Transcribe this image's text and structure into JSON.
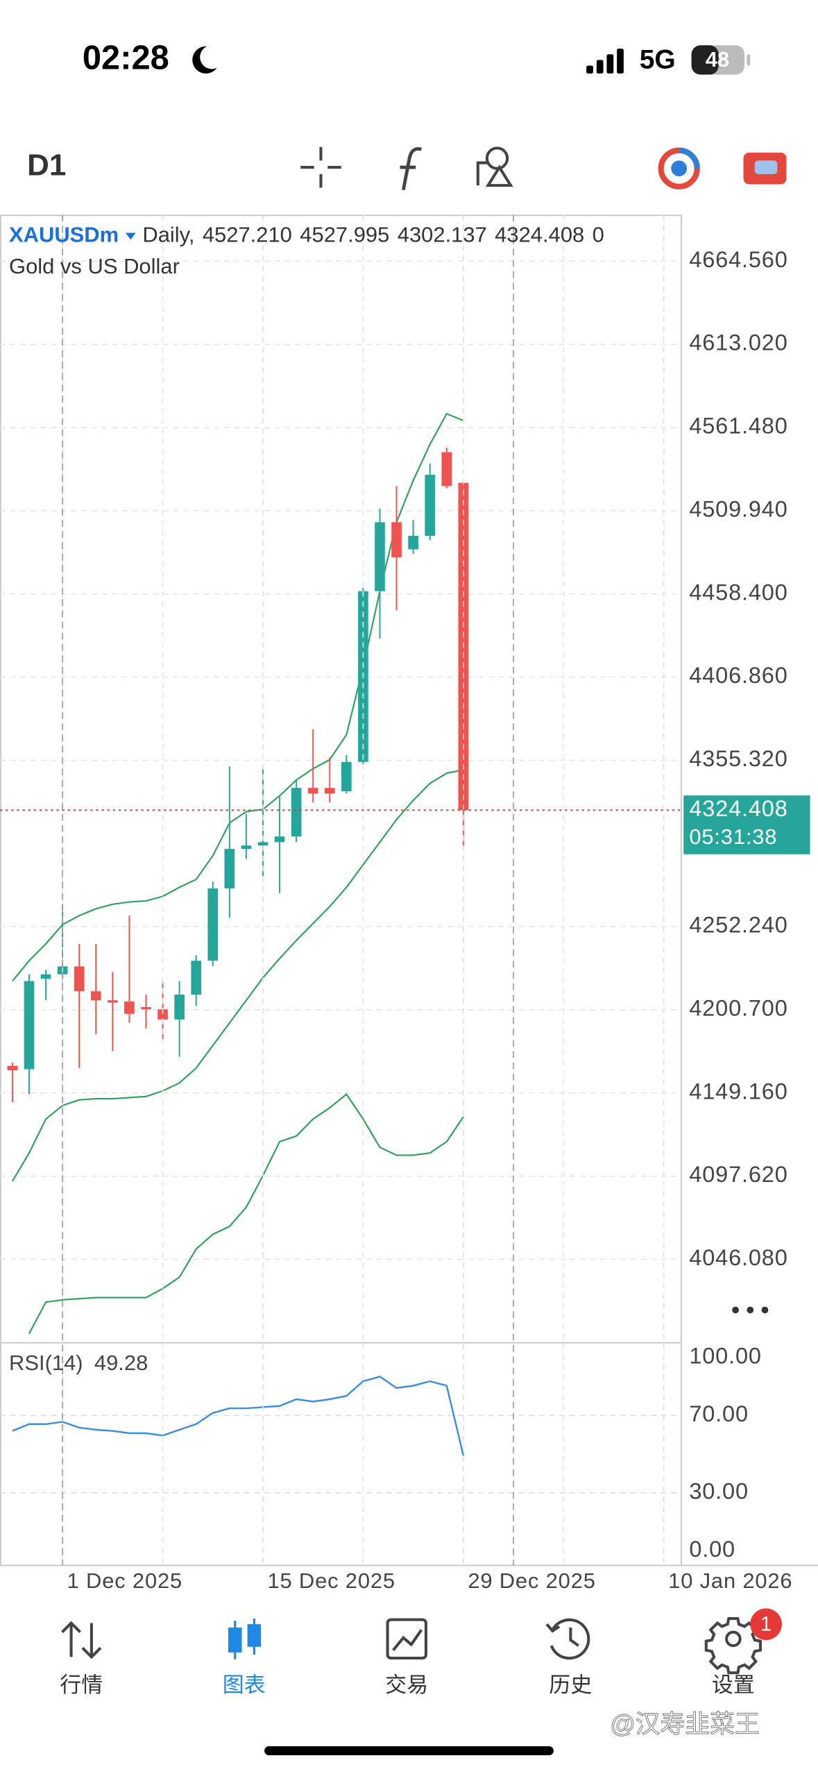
{
  "status_bar": {
    "time": "02:28",
    "network": "5G",
    "battery": "48"
  },
  "toolbar": {
    "timeframe": "D1"
  },
  "chart_data": [
    {
      "type": "candlestick",
      "symbol": "XAUUSDm",
      "period": "Daily,",
      "ohlc_labels": [
        "4527.210",
        "4527.995",
        "4302.137",
        "4324.408"
      ],
      "volume_label": "0",
      "description": "Gold vs US Dollar",
      "x": [
        0,
        1,
        2,
        3,
        4,
        5,
        6,
        7,
        8,
        9,
        10,
        11,
        12,
        13,
        14,
        15,
        16,
        17,
        18,
        19,
        20,
        21,
        22,
        23,
        24,
        25,
        26,
        27
      ],
      "open": [
        4166.0,
        4163.9,
        4219.9,
        4222.7,
        4227.6,
        4212.2,
        4206.6,
        4205.9,
        4202.4,
        4201.0,
        4194.7,
        4210.1,
        4231.1,
        4275.9,
        4300.4,
        4302.5,
        4304.6,
        4308.1,
        4338.2,
        4338.2,
        4336.1,
        4354.3,
        4460.1,
        4502.8,
        4486.0,
        4494.4,
        4546.2,
        4527.21
      ],
      "high": [
        4168.0,
        4222.7,
        4225.5,
        4266.1,
        4241.6,
        4241.6,
        4224.1,
        4259.1,
        4210.1,
        4218.5,
        4218.5,
        4234.6,
        4280.1,
        4351.5,
        4322.1,
        4350.1,
        4332.6,
        4343.1,
        4374.6,
        4357.1,
        4358.5,
        4462.2,
        4511.2,
        4525.2,
        4504.2,
        4539.2,
        4549.0,
        4527.995
      ],
      "low": [
        4143.5,
        4148.4,
        4206.6,
        4217.1,
        4164.6,
        4185.6,
        4175.1,
        4192.6,
        4189.1,
        4182.1,
        4171.6,
        4203.1,
        4227.6,
        4257.7,
        4294.1,
        4283.6,
        4273.1,
        4304.6,
        4329.1,
        4329.1,
        4334.7,
        4352.9,
        4430.7,
        4448.2,
        4483.2,
        4491.6,
        4523.8,
        4302.137
      ],
      "close": [
        4163.2,
        4218.5,
        4222.7,
        4227.6,
        4212.2,
        4206.6,
        4205.2,
        4198.2,
        4201.0,
        4194.7,
        4210.1,
        4231.1,
        4275.9,
        4300.4,
        4302.5,
        4304.6,
        4308.1,
        4338.2,
        4334.7,
        4334.7,
        4354.3,
        4460.1,
        4502.8,
        4481.1,
        4494.4,
        4532.2,
        4525.2,
        4324.408
      ],
      "up_color": "#26a69a",
      "down_color": "#ef5350",
      "bands": {
        "color": "#2e9e5b",
        "upper": [
          4218.5,
          4231.1,
          4241.6,
          4253.5,
          4259.1,
          4263.3,
          4266.1,
          4267.5,
          4268.2,
          4271.0,
          4276.6,
          4281.5,
          4296.2,
          4316.5,
          4323.5,
          4324.9,
          4333.3,
          4343.1,
          4350.1,
          4355.7,
          4371.1,
          4413.2,
          4460.1,
          4502.8,
          4528.7,
          4551.1,
          4570.0,
          4565.8
        ],
        "middle": [
          4094.5,
          4112.0,
          4133.0,
          4141.4,
          4144.9,
          4145.6,
          4145.6,
          4146.3,
          4147.0,
          4150.5,
          4155.4,
          4164.6,
          4178.6,
          4192.6,
          4206.6,
          4220.6,
          4232.5,
          4243.7,
          4254.2,
          4264.7,
          4276.6,
          4290.6,
          4304.6,
          4318.6,
          4330.5,
          4341.0,
          4347.3,
          4349.4
        ],
        "lower": [
          null,
          4000.0,
          4019.6,
          4021.0,
          4021.7,
          4022.4,
          4022.4,
          4022.4,
          4022.4,
          4028.0,
          4035.0,
          4052.5,
          4061.6,
          4066.5,
          4078.4,
          4098.0,
          4119.0,
          4122.5,
          4133.0,
          4140.0,
          4148.4,
          4133.0,
          4115.5,
          4110.6,
          4110.6,
          4112.0,
          4119.0,
          4134.4
        ]
      },
      "xlim": [
        -0.744,
        40.05
      ],
      "xticks": [
        {
          "value": 3,
          "label": "1 Dec 2025"
        },
        {
          "value": 15,
          "label": "15 Dec 2025"
        },
        {
          "value": 27,
          "label": "29 Dec 2025"
        },
        {
          "value": 39,
          "label": "10 Jan 2026"
        }
      ],
      "xgrid": [
        9,
        21,
        33
      ],
      "separators": [
        3,
        30
      ],
      "ylim": [
        3994.4,
        4693.3
      ],
      "yticks": [
        {
          "value": 4664.56,
          "label": "4664.560"
        },
        {
          "value": 4613.02,
          "label": "4613.020"
        },
        {
          "value": 4561.48,
          "label": "4561.480"
        },
        {
          "value": 4509.94,
          "label": "4509.940"
        },
        {
          "value": 4458.4,
          "label": "4458.400"
        },
        {
          "value": 4406.86,
          "label": "4406.860"
        },
        {
          "value": 4355.32,
          "label": "4355.320"
        },
        {
          "value": 4252.24,
          "label": "4252.240"
        },
        {
          "value": 4200.7,
          "label": "4200.700"
        },
        {
          "value": 4149.16,
          "label": "4149.160"
        },
        {
          "value": 4097.62,
          "label": "4097.620"
        },
        {
          "value": 4046.08,
          "label": "4046.080"
        }
      ],
      "grid": true,
      "last_price_label": "4324.408",
      "countdown": "05:31:38",
      "last_price_color": "#26a69a",
      "last_line_color": "#c9473f"
    },
    {
      "type": "line",
      "title": "RSI(14)",
      "x": [
        0,
        1,
        2,
        3,
        4,
        5,
        6,
        7,
        8,
        9,
        10,
        11,
        12,
        13,
        14,
        15,
        16,
        17,
        18,
        19,
        20,
        21,
        22,
        23,
        24,
        25,
        26,
        27
      ],
      "values": [
        62.0,
        65.5,
        65.5,
        66.7,
        63.7,
        62.6,
        62.0,
        60.8,
        60.8,
        59.6,
        62.6,
        65.5,
        71.3,
        73.7,
        73.7,
        74.3,
        74.9,
        78.4,
        77.2,
        78.4,
        80.1,
        87.7,
        90.1,
        84.2,
        85.4,
        87.7,
        85.4,
        49.28
      ],
      "color": "#3c8dde",
      "ylim": [
        -7.6,
        107.6
      ],
      "yticks": [
        {
          "value": 100,
          "label": "100.00"
        },
        {
          "value": 70,
          "label": "70.00"
        },
        {
          "value": 30,
          "label": "30.00"
        },
        {
          "value": 0,
          "label": "0.00"
        }
      ],
      "grid": true
    }
  ],
  "nav": [
    {
      "label": "行情"
    },
    {
      "label": "图表",
      "active": true
    },
    {
      "label": "交易"
    },
    {
      "label": "历史"
    },
    {
      "label": "设置"
    }
  ],
  "badge": "1",
  "watermark": "@汉寿韭菜王"
}
